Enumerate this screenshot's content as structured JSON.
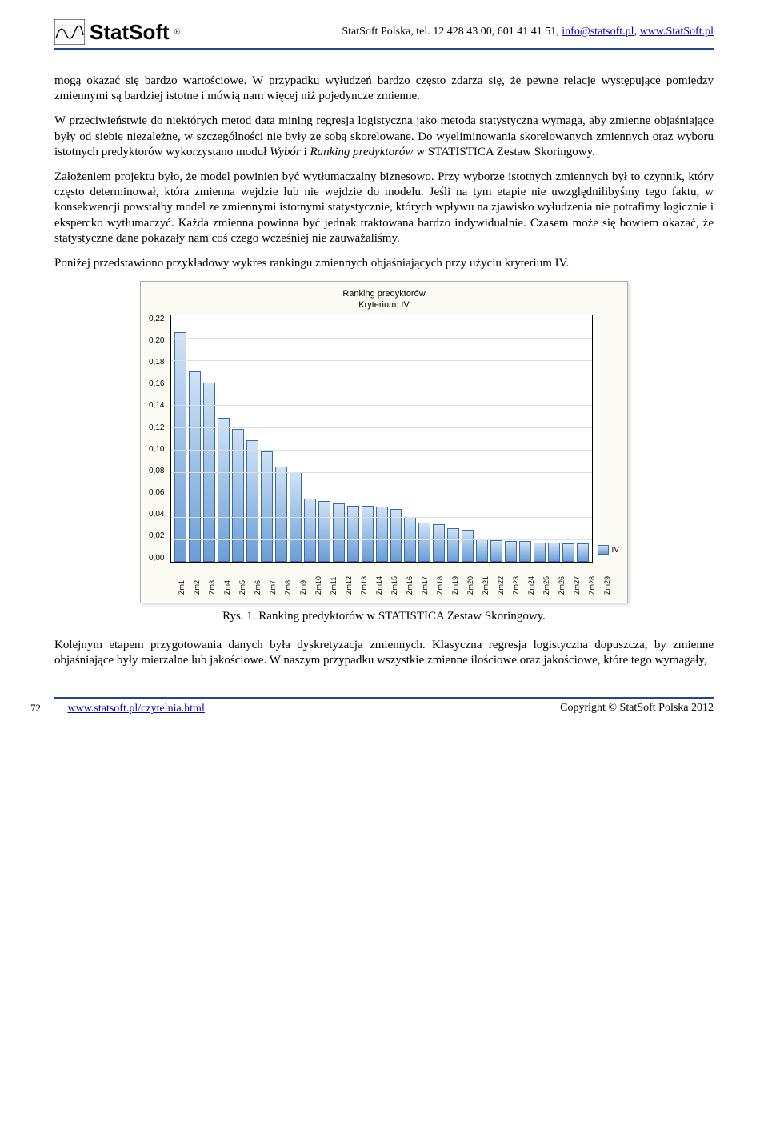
{
  "header": {
    "brand": "StatSoft",
    "reg": "®",
    "contact_prefix": "StatSoft Polska, tel. 12 428 43 00, 601 41 41 51, ",
    "email": "info@statsoft.pl",
    "site_prefix": ", ",
    "site": "www.StatSoft.pl"
  },
  "paragraphs": {
    "p1a": "mogą okazać się bardzo wartościowe. W przypadku wyłudzeń bardzo często zdarza się, że pewne relacje występujące pomiędzy zmiennymi są bardziej istotne i mówią nam więcej niż pojedyncze zmienne.",
    "p1b": "W przeciwieństwie do niektórych metod data mining regresja logistyczna jako metoda statystyczna wymaga, aby zmienne objaśniające były od siebie niezależne, w szczególności nie były ze sobą skorelowane. Do wyeliminowania skorelowanych zmiennych oraz wyboru istotnych predyktorów wykorzystano moduł ",
    "p1b_em1": "Wybór",
    "p1b_mid": " i ",
    "p1b_em2": "Ranking predyktorów",
    "p1b_tail": " w STATISTICA Zestaw Skoringowy.",
    "p2": "Założeniem projektu było, że model powinien być wytłumaczalny biznesowo. Przy wyborze istotnych zmiennych był to czynnik, który często determinował, która zmienna wejdzie lub nie wejdzie do modelu. Jeśli na tym etapie nie uwzględnilibyśmy tego faktu, w konsekwencji powstałby model ze zmiennymi istotnymi statystycznie, których wpływu na zjawisko wyłudzenia nie potrafimy logicznie i ekspercko wytłumaczyć. Każda zmienna powinna być jednak traktowana bardzo indywidualnie. Czasem może się bowiem okazać, że statystyczne dane pokazały nam coś czego wcześniej nie zauważaliśmy.",
    "p3": "Poniżej przedstawiono przykładowy wykres rankingu zmiennych objaśniających przy użyciu kryterium IV.",
    "p4": "Kolejnym etapem przygotowania danych była dyskretyzacja zmiennych. Klasyczna regresja logistyczna dopuszcza, by zmienne objaśniające były mierzalne lub jakościowe. W naszym przypadku wszystkie zmienne ilościowe oraz jakościowe, które tego wymagały,"
  },
  "chart": {
    "title": "Ranking predyktorów",
    "subtitle": "Kryterium: IV",
    "ylim": [
      0.0,
      0.22
    ],
    "ytick_step": 0.02,
    "yticks": [
      "0,22",
      "0,20",
      "0,18",
      "0,16",
      "0,14",
      "0,12",
      "0,10",
      "0,08",
      "0,06",
      "0,04",
      "0,02",
      "0,00"
    ],
    "categories": [
      "Zm1",
      "Zm2",
      "Zm3",
      "Zm4",
      "Zm5",
      "Zm6",
      "Zm7",
      "Zm8",
      "Zm9",
      "Zm10",
      "Zm11",
      "Zm12",
      "Zm13",
      "Zm14",
      "Zm15",
      "Zm16",
      "Zm17",
      "Zm18",
      "Zm19",
      "Zm20",
      "Zm21",
      "Zm22",
      "Zm23",
      "Zm24",
      "Zm25",
      "Zm26",
      "Zm27",
      "Zm28",
      "Zm29"
    ],
    "values": [
      0.205,
      0.17,
      0.16,
      0.128,
      0.118,
      0.108,
      0.098,
      0.085,
      0.08,
      0.056,
      0.054,
      0.052,
      0.05,
      0.05,
      0.049,
      0.047,
      0.04,
      0.035,
      0.033,
      0.03,
      0.028,
      0.02,
      0.019,
      0.018,
      0.018,
      0.017,
      0.017,
      0.016,
      0.016
    ],
    "bar_gradient_top": "#cfe2f6",
    "bar_gradient_bottom": "#6b9ed6",
    "bar_border": "#3a6aa8",
    "grid_color": "#e0e0e0",
    "axis_color": "#000000",
    "background": "#fbfbf3",
    "title_fontsize": 11,
    "label_fontsize": 10,
    "legend_label": "IV"
  },
  "caption": "Rys. 1. Ranking predyktorów w STATISTICA Zestaw Skoringowy.",
  "footer": {
    "pagenum": "72",
    "link": "www.statsoft.pl/czytelnia.html",
    "copyright": "Copyright © StatSoft Polska 2012"
  }
}
